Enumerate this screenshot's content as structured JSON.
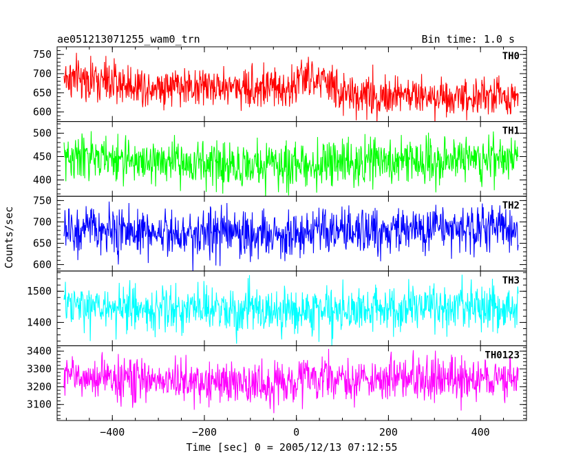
{
  "chart_data": {
    "type": "line",
    "title_left": "ae051213071255_wam0_trn",
    "title_right": "Bin time: 1.0 s",
    "xlabel": "Time [sec] 0 = 2005/12/13 07:12:55",
    "ylabel": "Counts/sec",
    "xlim": [
      -520,
      500
    ],
    "x_ticks": [
      -400,
      -200,
      0,
      200,
      400
    ],
    "x_tick_labels": [
      "−400",
      "−200",
      "0",
      "200",
      "400"
    ],
    "bin_time_s": 1.0,
    "x_start": -505,
    "x_end": 482,
    "panels": [
      {
        "name": "TH0",
        "color": "#ff0000",
        "ylim": [
          575,
          770
        ],
        "y_ticks": [
          600,
          650,
          700,
          750
        ],
        "y_tick_labels": [
          "600",
          "650",
          "700",
          "750"
        ],
        "trend": [
          [
            -505,
            690
          ],
          [
            -350,
            670
          ],
          [
            -100,
            665
          ],
          [
            0,
            662
          ],
          [
            1,
            690
          ],
          [
            80,
            675
          ],
          [
            90,
            645
          ],
          [
            482,
            640
          ]
        ],
        "noise_sd": 27
      },
      {
        "name": "TH1",
        "color": "#00ff00",
        "ylim": [
          365,
          525
        ],
        "y_ticks": [
          400,
          450,
          500
        ],
        "y_tick_labels": [
          "400",
          "450",
          "500"
        ],
        "trend": [
          [
            -505,
            450
          ],
          [
            -300,
            438
          ],
          [
            -100,
            430
          ],
          [
            0,
            432
          ],
          [
            200,
            440
          ],
          [
            482,
            450
          ]
        ],
        "noise_sd": 24
      },
      {
        "name": "TH2",
        "color": "#0000ff",
        "ylim": [
          585,
          760
        ],
        "y_ticks": [
          600,
          650,
          700,
          750
        ],
        "y_tick_labels": [
          "600",
          "650",
          "700",
          "750"
        ],
        "trend": [
          [
            -505,
            680
          ],
          [
            -200,
            675
          ],
          [
            0,
            670
          ],
          [
            200,
            680
          ],
          [
            482,
            688
          ]
        ],
        "noise_sd": 28
      },
      {
        "name": "TH3",
        "color": "#00ffff",
        "ylim": [
          1325,
          1565
        ],
        "y_ticks": [
          1400,
          1500
        ],
        "y_tick_labels": [
          "1400",
          "1500"
        ],
        "trend": [
          [
            -505,
            1450
          ],
          [
            -200,
            1440
          ],
          [
            0,
            1435
          ],
          [
            200,
            1445
          ],
          [
            482,
            1450
          ]
        ],
        "noise_sd": 37
      },
      {
        "name": "TH0123",
        "color": "#ff00ff",
        "ylim": [
          3010,
          3430
        ],
        "y_ticks": [
          3100,
          3200,
          3300,
          3400
        ],
        "y_tick_labels": [
          "3100",
          "3200",
          "3300",
          "3400"
        ],
        "trend": [
          [
            -505,
            3260
          ],
          [
            -350,
            3240
          ],
          [
            -100,
            3215
          ],
          [
            0,
            3210
          ],
          [
            1,
            3260
          ],
          [
            100,
            3240
          ],
          [
            482,
            3245
          ]
        ],
        "noise_sd": 60
      }
    ]
  }
}
